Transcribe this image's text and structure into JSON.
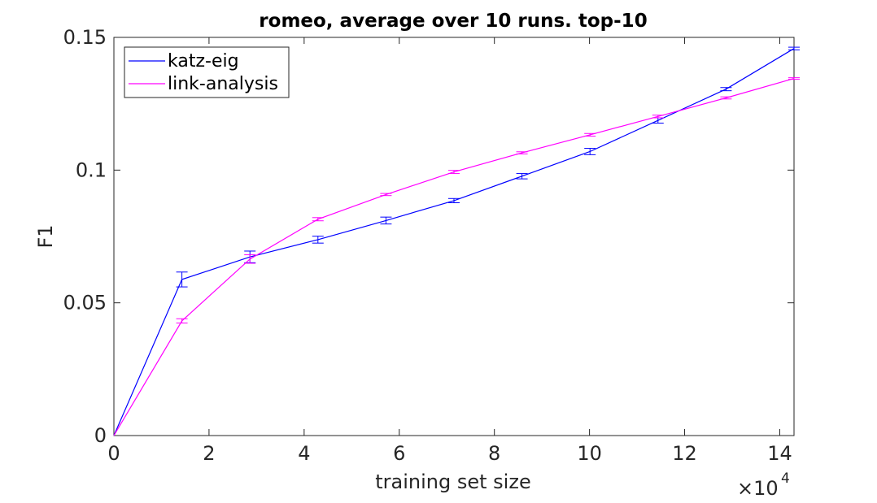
{
  "chart_data": {
    "type": "line",
    "title": "romeo, average over 10 runs. top-10",
    "xlabel": "training set size",
    "ylabel": "F1",
    "x_exponent_label": "×10",
    "x_exponent_power": "4",
    "xlim": [
      0,
      143000
    ],
    "ylim": [
      0,
      0.15
    ],
    "x_ticks": [
      0,
      20000,
      40000,
      60000,
      80000,
      100000,
      120000,
      140000
    ],
    "x_tick_labels": [
      "0",
      "2",
      "4",
      "6",
      "8",
      "10",
      "12",
      "14"
    ],
    "y_ticks": [
      0,
      0.05,
      0.1,
      0.15
    ],
    "y_tick_labels": [
      "0",
      "0.05",
      "0.1",
      "0.15"
    ],
    "grid": false,
    "legend_position": "top-left",
    "series": [
      {
        "name": "katz-eig",
        "color": "#0000ff",
        "x": [
          0,
          14300,
          28600,
          42900,
          57200,
          71500,
          85800,
          100100,
          114400,
          128700,
          143000
        ],
        "y": [
          0,
          0.0588,
          0.0673,
          0.0738,
          0.081,
          0.0885,
          0.0977,
          0.107,
          0.1187,
          0.1305,
          0.1458
        ],
        "err": [
          0,
          0.0028,
          0.0022,
          0.0013,
          0.0013,
          0.0008,
          0.001,
          0.0012,
          0.001,
          0.0006,
          0.0005
        ]
      },
      {
        "name": "link-analysis",
        "color": "#ff00ff",
        "x": [
          0,
          14300,
          28600,
          42900,
          57200,
          71500,
          85800,
          100100,
          114400,
          128700,
          143000
        ],
        "y": [
          0,
          0.0432,
          0.0665,
          0.0815,
          0.0908,
          0.0993,
          0.1065,
          0.1133,
          0.1202,
          0.1272,
          0.1345
        ],
        "err": [
          0,
          0.0008,
          0.0016,
          0.0006,
          0.0004,
          0.0006,
          0.0004,
          0.0005,
          0.0005,
          0.0004,
          0.0003
        ]
      }
    ]
  }
}
